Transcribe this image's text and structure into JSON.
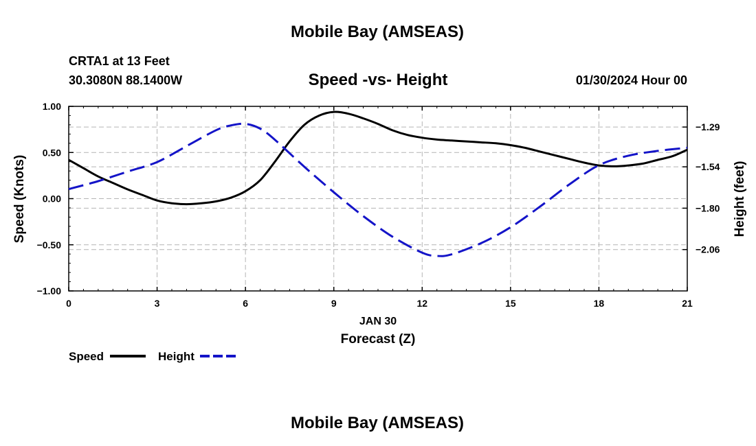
{
  "header": {
    "title": "Mobile Bay (AMSEAS)",
    "station": "CRTA1 at 13 Feet",
    "coords": "30.3080N  88.1400W",
    "datetime": "01/30/2024 Hour 00",
    "footer_title": "Mobile Bay (AMSEAS)"
  },
  "chart_data": {
    "type": "line",
    "title": "Speed -vs- Height",
    "xlabel": "Forecast (Z)",
    "xdate": "JAN 30",
    "ylabel": "Speed (Knots)",
    "y2label": "Height (feet)",
    "xlim": [
      0,
      21
    ],
    "ylim": [
      -1.0,
      1.0
    ],
    "y2lim": [
      -2.32,
      -1.16
    ],
    "x_ticks": [
      0,
      3,
      6,
      9,
      12,
      15,
      18,
      21
    ],
    "x_tick_labels": [
      "0",
      "3",
      "6",
      "9",
      "12",
      "15",
      "18",
      "21"
    ],
    "y_ticks": [
      1.0,
      0.5,
      0.0,
      -0.5,
      -1.0
    ],
    "y_tick_labels": [
      "1.00",
      "0.50",
      "0.00",
      "−0.50",
      "−1.00"
    ],
    "y2_ticks": [
      -1.29,
      -1.54,
      -1.8,
      -2.06
    ],
    "y2_tick_labels": [
      "−1.29",
      "−1.54",
      "−1.80",
      "−2.06"
    ],
    "grid": true,
    "legend": "bottom-left",
    "series": [
      {
        "name": "Speed",
        "axis": "left",
        "color": "#000000",
        "style": "solid",
        "x": [
          0,
          0.5,
          1,
          1.5,
          2,
          2.5,
          3,
          3.5,
          4,
          4.5,
          5,
          5.5,
          6,
          6.5,
          7,
          7.5,
          8,
          8.5,
          9,
          9.5,
          10,
          10.5,
          11,
          11.5,
          12,
          12.5,
          13,
          13.5,
          14,
          14.5,
          15,
          15.5,
          16,
          16.5,
          17,
          17.5,
          18,
          18.5,
          19,
          19.5,
          20,
          20.5,
          21
        ],
        "values": [
          0.42,
          0.33,
          0.24,
          0.17,
          0.1,
          0.04,
          -0.02,
          -0.05,
          -0.06,
          -0.05,
          -0.03,
          0.01,
          0.08,
          0.2,
          0.4,
          0.62,
          0.8,
          0.9,
          0.94,
          0.92,
          0.87,
          0.81,
          0.74,
          0.69,
          0.66,
          0.64,
          0.63,
          0.62,
          0.61,
          0.6,
          0.58,
          0.55,
          0.51,
          0.47,
          0.43,
          0.39,
          0.36,
          0.35,
          0.36,
          0.38,
          0.42,
          0.46,
          0.53
        ]
      },
      {
        "name": "Height",
        "axis": "right",
        "color": "#1414c8",
        "style": "dashed",
        "x": [
          0,
          1,
          2,
          3,
          4,
          5,
          5.5,
          6,
          6.5,
          7,
          8,
          9,
          10,
          11,
          12,
          12.5,
          13,
          14,
          15,
          16,
          17,
          18,
          19,
          20,
          21
        ],
        "values": [
          -1.68,
          -1.63,
          -1.57,
          -1.51,
          -1.41,
          -1.31,
          -1.28,
          -1.27,
          -1.3,
          -1.37,
          -1.54,
          -1.7,
          -1.85,
          -1.98,
          -2.08,
          -2.1,
          -2.09,
          -2.02,
          -1.92,
          -1.79,
          -1.65,
          -1.53,
          -1.47,
          -1.44,
          -1.42
        ]
      }
    ]
  }
}
